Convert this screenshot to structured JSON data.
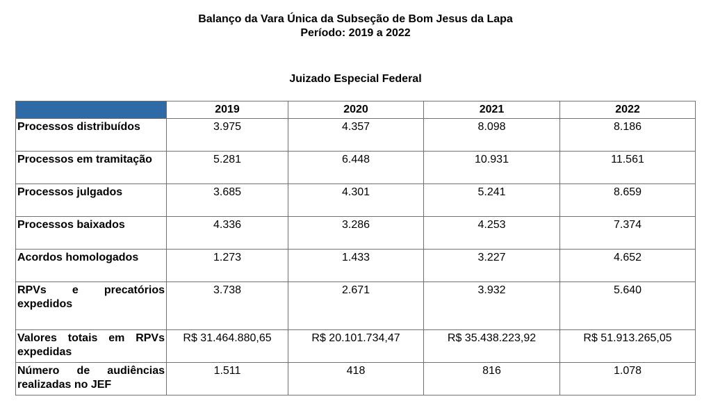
{
  "header": {
    "title_line1": "Balanço da Vara Única da Subseção de Bom Jesus da Lapa",
    "title_line2": "Período: 2019 a 2022",
    "section_title": "Juizado Especial Federal"
  },
  "colors": {
    "header_corner": "#2e6aa6",
    "border": "#6f6f6f"
  },
  "table": {
    "years": [
      "2019",
      "2020",
      "2021",
      "2022"
    ],
    "rows": [
      {
        "label": "Processos distribuídos",
        "values": [
          "3.975",
          "4.357",
          "8.098",
          "8.186"
        ]
      },
      {
        "label": "Processos em tramitação",
        "values": [
          "5.281",
          "6.448",
          "10.931",
          "11.561"
        ]
      },
      {
        "label": "Processos julgados",
        "values": [
          "3.685",
          "4.301",
          "5.241",
          "8.659"
        ]
      },
      {
        "label": "Processos baixados",
        "values": [
          "4.336",
          "3.286",
          "4.253",
          "7.374"
        ]
      },
      {
        "label": "Acordos homologados",
        "values": [
          "1.273",
          "1.433",
          "3.227",
          "4.652"
        ]
      },
      {
        "label": "RPVs e precatórios expedidos",
        "values": [
          "3.738",
          "2.671",
          "3.932",
          "5.640"
        ]
      },
      {
        "label": "Valores totais em RPVs expedidas",
        "values": [
          "R$ 31.464.880,65",
          "R$ 20.101.734,47",
          "R$ 35.438.223,92",
          "R$ 51.913.265,05"
        ]
      },
      {
        "label": "Número de audiências realizadas no JEF",
        "values": [
          "1.511",
          "418",
          "816",
          "1.078"
        ]
      }
    ]
  }
}
